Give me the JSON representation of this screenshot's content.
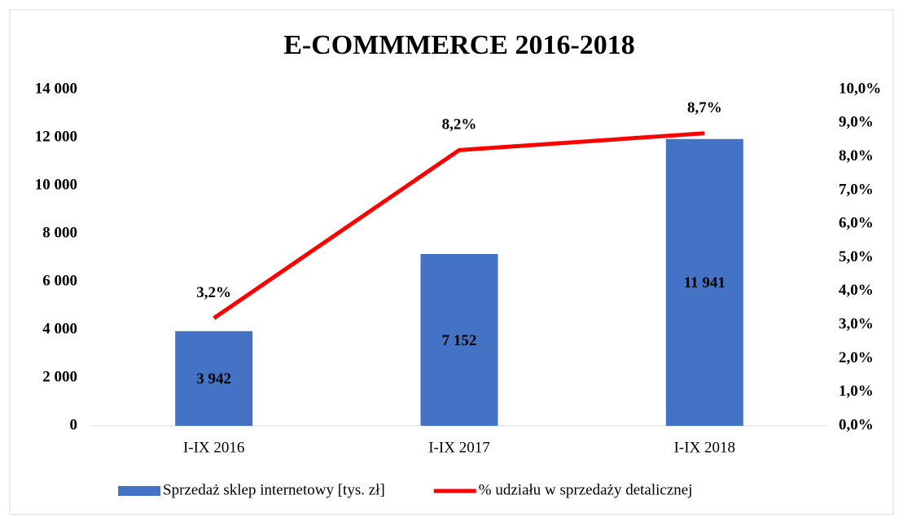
{
  "chart_data": {
    "type": "bar",
    "title": "E-COMMMERCE  2016-2018",
    "categories": [
      "I-IX 2016",
      "I-IX 2017",
      "I-IX 2018"
    ],
    "series": [
      {
        "name": "Sprzedaż sklep internetowy [tys. zł]",
        "type": "bar",
        "color": "#4472c4",
        "values": [
          3942,
          7152,
          11941
        ],
        "value_labels": [
          "3 942",
          "7 152",
          "11 941"
        ]
      },
      {
        "name": "% udziału w sprzedaży detalicznej",
        "type": "line",
        "axis": "y2",
        "color": "#ff0000",
        "values": [
          3.2,
          8.2,
          8.7
        ],
        "value_labels": [
          "3,2%",
          "8,2%",
          "8,7%"
        ]
      }
    ],
    "ylim": [
      0,
      14000
    ],
    "yticks": [
      0,
      {
        "value": 2000,
        "label": "2 000"
      },
      {
        "value": 4000,
        "label": "4 000"
      },
      {
        "value": 6000,
        "label": "6 000"
      },
      {
        "value": 8000,
        "label": "8 000"
      },
      {
        "value": 10000,
        "label": "10 000"
      },
      {
        "value": 12000,
        "label": "12 000"
      },
      {
        "value": 14000,
        "label": "14 000"
      }
    ],
    "y2lim": [
      0,
      10
    ],
    "y2ticks": [
      {
        "value": 0,
        "label": "0,0%"
      },
      {
        "value": 1,
        "label": "1,0%"
      },
      {
        "value": 2,
        "label": "2,0%"
      },
      {
        "value": 3,
        "label": "3,0%"
      },
      {
        "value": 4,
        "label": "4,0%"
      },
      {
        "value": 5,
        "label": "5,0%"
      },
      {
        "value": 6,
        "label": "6,0%"
      },
      {
        "value": 7,
        "label": "7,0%"
      },
      {
        "value": 8,
        "label": "8,0%"
      },
      {
        "value": 9,
        "label": "9,0%"
      },
      {
        "value": 10,
        "label": "10,0%"
      }
    ],
    "grid": false,
    "legend": "bottom"
  }
}
